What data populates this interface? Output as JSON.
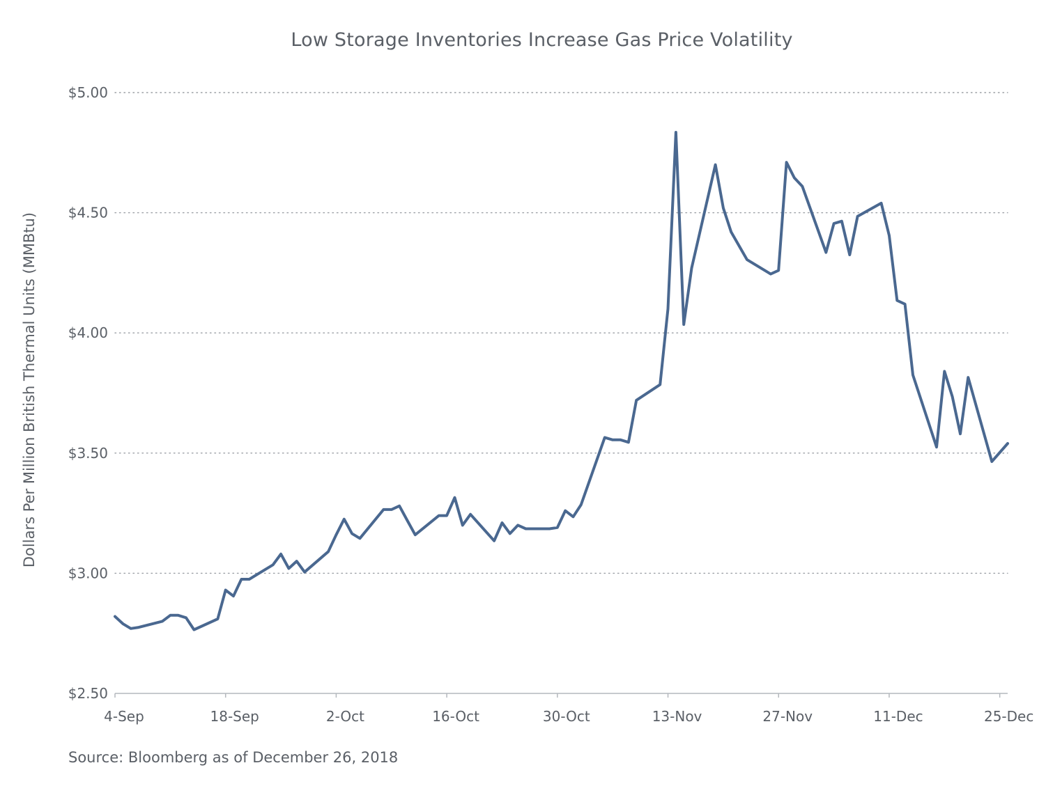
{
  "chart_data": {
    "type": "line",
    "title": "Low Storage Inventories Increase Gas Price Volatility",
    "ylabel": "Dollars Per Million British Thermal Units (MMBtu)",
    "xlabel": "",
    "source": "Source: Bloomberg as of December 26, 2018",
    "ylim": [
      2.5,
      5.0
    ],
    "yticks": [
      2.5,
      3.0,
      3.5,
      4.0,
      4.5,
      5.0
    ],
    "ytick_labels": [
      "$2.50",
      "$3.00",
      "$3.50",
      "$4.00",
      "$4.50",
      "$5.00"
    ],
    "xlim": [
      "2018-09-04",
      "2018-12-26"
    ],
    "xticks": [
      "2018-09-04",
      "2018-09-18",
      "2018-10-02",
      "2018-10-16",
      "2018-10-30",
      "2018-11-13",
      "2018-11-27",
      "2018-12-11",
      "2018-12-25"
    ],
    "xtick_labels": [
      "4-Sep",
      "18-Sep",
      "2-Oct",
      "16-Oct",
      "30-Oct",
      "13-Nov",
      "27-Nov",
      "11-Dec",
      "25-Dec"
    ],
    "grid": "horizontal dotted",
    "line_color": "#4a6890",
    "series": [
      {
        "x": [
          "2018-09-04",
          "2018-09-05",
          "2018-09-06",
          "2018-09-07",
          "2018-09-10",
          "2018-09-11",
          "2018-09-12",
          "2018-09-13",
          "2018-09-14",
          "2018-09-17",
          "2018-09-18",
          "2018-09-19",
          "2018-09-20",
          "2018-09-21",
          "2018-09-24",
          "2018-09-25",
          "2018-09-26",
          "2018-09-27",
          "2018-09-28",
          "2018-10-01",
          "2018-10-02",
          "2018-10-03",
          "2018-10-04",
          "2018-10-05",
          "2018-10-08",
          "2018-10-09",
          "2018-10-10",
          "2018-10-11",
          "2018-10-12",
          "2018-10-15",
          "2018-10-16",
          "2018-10-17",
          "2018-10-18",
          "2018-10-19",
          "2018-10-22",
          "2018-10-23",
          "2018-10-24",
          "2018-10-25",
          "2018-10-26",
          "2018-10-29",
          "2018-10-30",
          "2018-10-31",
          "2018-11-01",
          "2018-11-02",
          "2018-11-05",
          "2018-11-06",
          "2018-11-07",
          "2018-11-08",
          "2018-11-09",
          "2018-11-12",
          "2018-11-13",
          "2018-11-14",
          "2018-11-15",
          "2018-11-16",
          "2018-11-19",
          "2018-11-20",
          "2018-11-21",
          "2018-11-23",
          "2018-11-26",
          "2018-11-27",
          "2018-11-28",
          "2018-11-29",
          "2018-11-30",
          "2018-12-03",
          "2018-12-04",
          "2018-12-05",
          "2018-12-06",
          "2018-12-07",
          "2018-12-10",
          "2018-12-11",
          "2018-12-12",
          "2018-12-13",
          "2018-12-14",
          "2018-12-17",
          "2018-12-18",
          "2018-12-19",
          "2018-12-20",
          "2018-12-21",
          "2018-12-24",
          "2018-12-26"
        ],
        "values": [
          2.82,
          2.79,
          2.77,
          2.775,
          2.8,
          2.825,
          2.825,
          2.815,
          2.765,
          2.81,
          2.93,
          2.905,
          2.975,
          2.975,
          3.035,
          3.08,
          3.02,
          3.05,
          3.005,
          3.09,
          3.16,
          3.225,
          3.165,
          3.145,
          3.265,
          3.265,
          3.28,
          3.22,
          3.16,
          3.24,
          3.24,
          3.315,
          3.2,
          3.245,
          3.135,
          3.21,
          3.165,
          3.2,
          3.185,
          3.185,
          3.19,
          3.26,
          3.235,
          3.285,
          3.565,
          3.555,
          3.555,
          3.545,
          3.72,
          3.785,
          4.1,
          4.835,
          4.035,
          4.27,
          4.7,
          4.52,
          4.42,
          4.305,
          4.245,
          4.26,
          4.71,
          4.645,
          4.61,
          4.335,
          4.455,
          4.465,
          4.325,
          4.485,
          4.54,
          4.405,
          4.135,
          4.12,
          3.825,
          3.525,
          3.84,
          3.735,
          3.58,
          3.815,
          3.465,
          3.54
        ]
      }
    ]
  }
}
